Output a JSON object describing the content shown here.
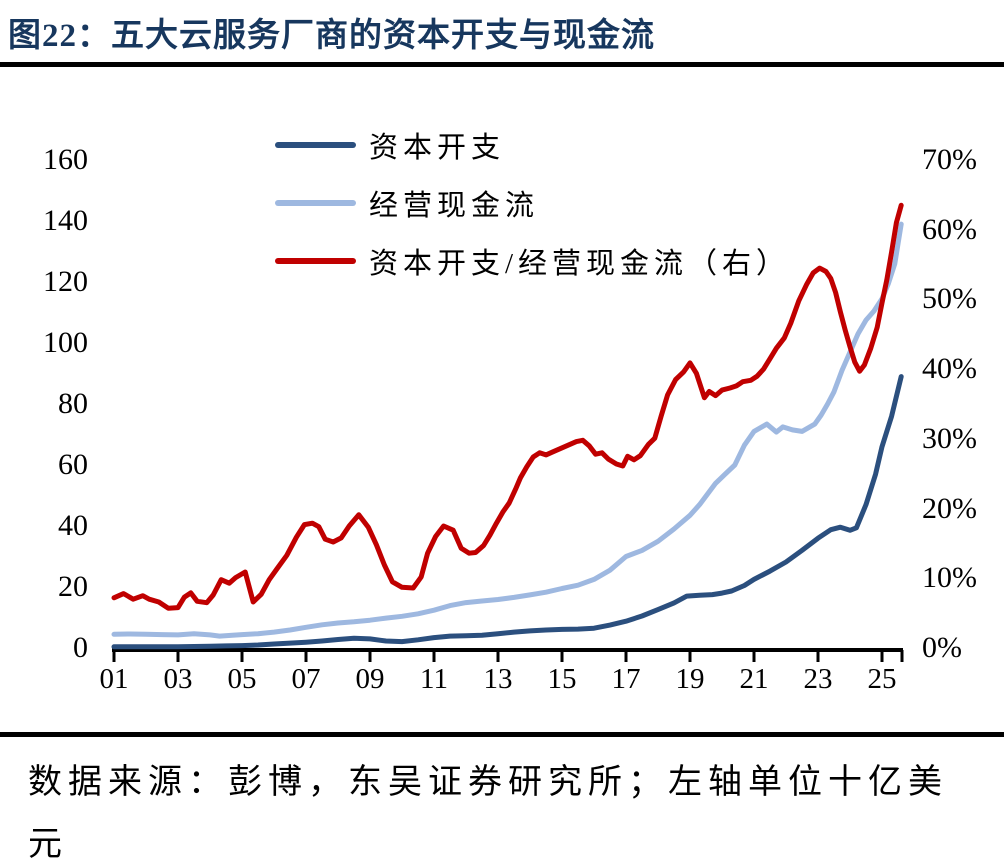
{
  "figure": {
    "title": "图22：五大云服务厂商的资本开支与现金流",
    "source_note": "数据来源：彭博，东吴证券研究所；左轴单位十亿美元",
    "source_lines": [
      "数据来源：彭博，东吴证券研究所；左轴单位十亿美",
      "元"
    ]
  },
  "colors": {
    "title_navy": "#17375E",
    "rule_black": "#000000",
    "capex_line": "#2B4F7E",
    "ocf_line": "#9EB8E0",
    "ratio_line": "#C00000",
    "axis_black": "#000000"
  },
  "chart_data": {
    "type": "line",
    "title": "五大云服务厂商的资本开支与现金流",
    "grid": false,
    "legend_position": "top-left-inside",
    "x": {
      "tick_labels": [
        "01",
        "03",
        "05",
        "07",
        "09",
        "11",
        "13",
        "15",
        "17",
        "19",
        "21",
        "23",
        "25"
      ],
      "range_years": [
        2001,
        2025.6
      ]
    },
    "left_axis": {
      "ticks": [
        0,
        20,
        40,
        60,
        80,
        100,
        120,
        140,
        160
      ],
      "range": [
        0,
        160
      ],
      "unit": "十亿美元"
    },
    "right_axis": {
      "tick_labels": [
        "0%",
        "10%",
        "20%",
        "30%",
        "40%",
        "50%",
        "60%",
        "70%"
      ],
      "range_percent": [
        0,
        70
      ]
    },
    "series": [
      {
        "name": "资本开支",
        "axis": "left",
        "color": "#2B4F7E",
        "points": [
          [
            1,
            0.4
          ],
          [
            1.5,
            0.4
          ],
          [
            2,
            0.4
          ],
          [
            2.5,
            0.4
          ],
          [
            3,
            0.4
          ],
          [
            3.5,
            0.5
          ],
          [
            4,
            0.6
          ],
          [
            4.5,
            0.7
          ],
          [
            5,
            0.8
          ],
          [
            5.5,
            1.0
          ],
          [
            6,
            1.3
          ],
          [
            6.5,
            1.6
          ],
          [
            7,
            1.9
          ],
          [
            7.5,
            2.3
          ],
          [
            8,
            2.8
          ],
          [
            8.5,
            3.2
          ],
          [
            9,
            3.0
          ],
          [
            9.5,
            2.3
          ],
          [
            10,
            2.1
          ],
          [
            10.5,
            2.7
          ],
          [
            11,
            3.4
          ],
          [
            11.5,
            3.9
          ],
          [
            12,
            4.0
          ],
          [
            12.5,
            4.2
          ],
          [
            13,
            4.7
          ],
          [
            13.5,
            5.2
          ],
          [
            14,
            5.6
          ],
          [
            14.5,
            5.9
          ],
          [
            15,
            6.1
          ],
          [
            15.5,
            6.2
          ],
          [
            16,
            6.5
          ],
          [
            16.5,
            7.5
          ],
          [
            17,
            8.8
          ],
          [
            17.5,
            10.5
          ],
          [
            18,
            12.6
          ],
          [
            18.5,
            14.8
          ],
          [
            18.9,
            17.0
          ],
          [
            19.3,
            17.3
          ],
          [
            19.7,
            17.5
          ],
          [
            20,
            18.0
          ],
          [
            20.3,
            18.7
          ],
          [
            20.7,
            20.5
          ],
          [
            21,
            22.5
          ],
          [
            21.5,
            25.2
          ],
          [
            22,
            28.2
          ],
          [
            22.5,
            32.0
          ],
          [
            23,
            36.0
          ],
          [
            23.4,
            38.8
          ],
          [
            23.7,
            39.6
          ],
          [
            24,
            38.6
          ],
          [
            24.2,
            39.4
          ],
          [
            24.5,
            47.0
          ],
          [
            24.8,
            57.0
          ],
          [
            25,
            66.0
          ],
          [
            25.3,
            76.0
          ],
          [
            25.6,
            89.0
          ]
        ]
      },
      {
        "name": "经营现金流",
        "axis": "left",
        "color": "#9EB8E0",
        "points": [
          [
            1,
            4.5
          ],
          [
            1.5,
            4.6
          ],
          [
            2,
            4.5
          ],
          [
            2.5,
            4.4
          ],
          [
            3,
            4.3
          ],
          [
            3.5,
            4.7
          ],
          [
            4,
            4.3
          ],
          [
            4.3,
            3.9
          ],
          [
            4.7,
            4.2
          ],
          [
            5,
            4.4
          ],
          [
            5.5,
            4.7
          ],
          [
            6,
            5.2
          ],
          [
            6.5,
            5.9
          ],
          [
            7,
            6.8
          ],
          [
            7.5,
            7.6
          ],
          [
            8,
            8.2
          ],
          [
            8.5,
            8.6
          ],
          [
            9,
            9.1
          ],
          [
            9.5,
            9.8
          ],
          [
            10,
            10.4
          ],
          [
            10.5,
            11.2
          ],
          [
            11,
            12.4
          ],
          [
            11.5,
            13.9
          ],
          [
            12,
            14.9
          ],
          [
            12.5,
            15.4
          ],
          [
            13,
            15.9
          ],
          [
            13.5,
            16.6
          ],
          [
            14,
            17.4
          ],
          [
            14.5,
            18.3
          ],
          [
            15,
            19.5
          ],
          [
            15.5,
            20.6
          ],
          [
            16,
            22.5
          ],
          [
            16.5,
            25.5
          ],
          [
            17,
            30.0
          ],
          [
            17.5,
            32.0
          ],
          [
            18,
            35.0
          ],
          [
            18.5,
            39.0
          ],
          [
            19,
            43.5
          ],
          [
            19.3,
            47.0
          ],
          [
            19.8,
            54.0
          ],
          [
            20.1,
            57.0
          ],
          [
            20.4,
            60.0
          ],
          [
            20.7,
            66.5
          ],
          [
            21,
            71.0
          ],
          [
            21.4,
            73.4
          ],
          [
            21.7,
            70.8
          ],
          [
            21.9,
            72.5
          ],
          [
            22.2,
            71.5
          ],
          [
            22.5,
            71.0
          ],
          [
            22.9,
            73.4
          ],
          [
            23.1,
            76.4
          ],
          [
            23.3,
            80.0
          ],
          [
            23.5,
            84.0
          ],
          [
            23.75,
            91.0
          ],
          [
            24,
            97.0
          ],
          [
            24.25,
            103.0
          ],
          [
            24.5,
            107.5
          ],
          [
            24.75,
            110.5
          ],
          [
            25,
            114.5
          ],
          [
            25.2,
            119.5
          ],
          [
            25.4,
            126.0
          ],
          [
            25.6,
            139.0
          ]
        ]
      },
      {
        "name": "资本开支/经营现金流（右）",
        "axis": "right",
        "unit": "%",
        "color": "#C00000",
        "points": [
          [
            1,
            7.2
          ],
          [
            1.3,
            7.8
          ],
          [
            1.6,
            7.0
          ],
          [
            1.9,
            7.5
          ],
          [
            2.1,
            7.0
          ],
          [
            2.4,
            6.6
          ],
          [
            2.7,
            5.7
          ],
          [
            3,
            5.8
          ],
          [
            3.2,
            7.3
          ],
          [
            3.4,
            7.9
          ],
          [
            3.6,
            6.7
          ],
          [
            3.9,
            6.5
          ],
          [
            4.1,
            7.6
          ],
          [
            4.35,
            9.8
          ],
          [
            4.6,
            9.3
          ],
          [
            4.8,
            10.1
          ],
          [
            5.1,
            10.9
          ],
          [
            5.35,
            6.6
          ],
          [
            5.6,
            7.7
          ],
          [
            5.85,
            9.8
          ],
          [
            6.1,
            11.4
          ],
          [
            6.4,
            13.3
          ],
          [
            6.7,
            15.9
          ],
          [
            6.95,
            17.7
          ],
          [
            7.2,
            17.9
          ],
          [
            7.4,
            17.4
          ],
          [
            7.6,
            15.6
          ],
          [
            7.85,
            15.2
          ],
          [
            8.1,
            15.8
          ],
          [
            8.35,
            17.5
          ],
          [
            8.65,
            19.1
          ],
          [
            8.95,
            17.3
          ],
          [
            9.2,
            14.8
          ],
          [
            9.45,
            11.9
          ],
          [
            9.7,
            9.5
          ],
          [
            10,
            8.7
          ],
          [
            10.35,
            8.6
          ],
          [
            10.6,
            10.2
          ],
          [
            10.8,
            13.6
          ],
          [
            11.05,
            16.0
          ],
          [
            11.3,
            17.5
          ],
          [
            11.6,
            16.9
          ],
          [
            11.85,
            14.3
          ],
          [
            12.1,
            13.6
          ],
          [
            12.3,
            13.7
          ],
          [
            12.55,
            14.7
          ],
          [
            12.75,
            16.2
          ],
          [
            12.95,
            17.9
          ],
          [
            13.15,
            19.5
          ],
          [
            13.35,
            20.8
          ],
          [
            13.55,
            22.8
          ],
          [
            13.7,
            24.4
          ],
          [
            13.9,
            26.0
          ],
          [
            14.1,
            27.4
          ],
          [
            14.3,
            28.0
          ],
          [
            14.5,
            27.7
          ],
          [
            14.7,
            28.1
          ],
          [
            14.95,
            28.6
          ],
          [
            15.2,
            29.1
          ],
          [
            15.45,
            29.6
          ],
          [
            15.65,
            29.8
          ],
          [
            15.85,
            29.0
          ],
          [
            16.05,
            27.8
          ],
          [
            16.25,
            28.0
          ],
          [
            16.45,
            27.1
          ],
          [
            16.7,
            26.4
          ],
          [
            16.9,
            26.1
          ],
          [
            17.05,
            27.5
          ],
          [
            17.25,
            27.0
          ],
          [
            17.45,
            27.6
          ],
          [
            17.7,
            29.2
          ],
          [
            17.9,
            30.1
          ],
          [
            18.1,
            33.3
          ],
          [
            18.3,
            36.3
          ],
          [
            18.55,
            38.5
          ],
          [
            18.8,
            39.6
          ],
          [
            19,
            40.9
          ],
          [
            19.2,
            39.4
          ],
          [
            19.45,
            35.9
          ],
          [
            19.6,
            36.8
          ],
          [
            19.8,
            36.2
          ],
          [
            20,
            37.0
          ],
          [
            20.25,
            37.3
          ],
          [
            20.45,
            37.6
          ],
          [
            20.65,
            38.2
          ],
          [
            20.9,
            38.4
          ],
          [
            21.1,
            39.0
          ],
          [
            21.3,
            40.0
          ],
          [
            21.5,
            41.5
          ],
          [
            21.7,
            43.0
          ],
          [
            21.95,
            44.5
          ],
          [
            22.15,
            46.6
          ],
          [
            22.4,
            49.8
          ],
          [
            22.65,
            52.2
          ],
          [
            22.85,
            53.8
          ],
          [
            23.05,
            54.5
          ],
          [
            23.25,
            54.0
          ],
          [
            23.4,
            53.0
          ],
          [
            23.55,
            51.0
          ],
          [
            23.7,
            48.2
          ],
          [
            23.85,
            45.6
          ],
          [
            24,
            43.2
          ],
          [
            24.15,
            41.0
          ],
          [
            24.3,
            39.7
          ],
          [
            24.45,
            40.6
          ],
          [
            24.65,
            43.0
          ],
          [
            24.85,
            46.0
          ],
          [
            25.0,
            49.5
          ],
          [
            25.15,
            52.8
          ],
          [
            25.3,
            56.8
          ],
          [
            25.45,
            61.0
          ],
          [
            25.6,
            63.5
          ]
        ]
      }
    ]
  }
}
